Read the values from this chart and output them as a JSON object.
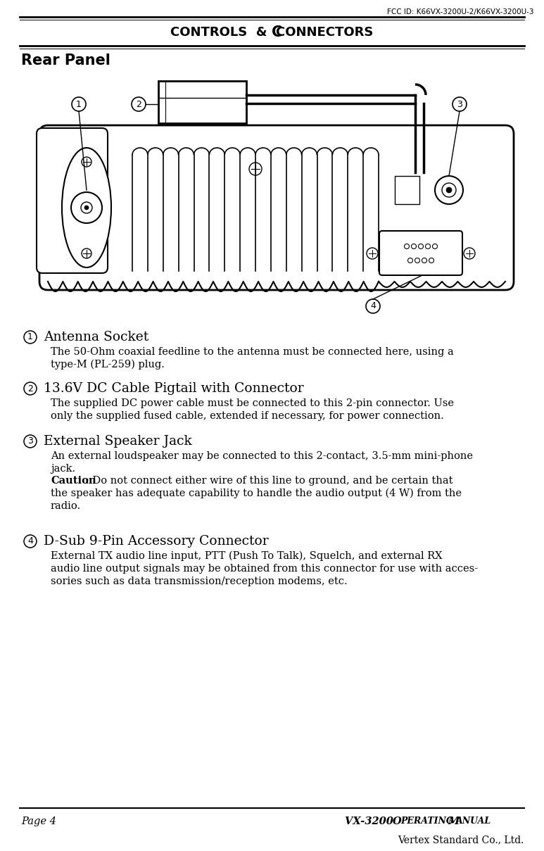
{
  "fcc_id": "FCC ID: K66VX-3200U-2/K66VX-3200U-3",
  "header_title_top": "CONTROLS",
  "header_title_amp": " & ",
  "header_title_bot": "CONNECTORS",
  "section_title": "Rear Panel",
  "footer_left": "Page 4",
  "footer_center": "VX-3200 O",
  "footer_center2": "PERATING",
  "footer_center3": " M",
  "footer_center4": "ANUAL",
  "footer_right": "Vertex Standard Co., Ltd.",
  "item1_title": "Antenna Socket",
  "item1_body1": "The 50-Ohm coaxial feedline to the antenna must be connected here, using a",
  "item1_body2": "type-M (PL-259) plug.",
  "item2_title": "13.6V DC Cable Pigtail with Connector",
  "item2_body1": "The supplied DC power cable must be connected to this 2-pin connector. Use",
  "item2_body2": "only the supplied fused cable, extended if necessary, for power connection.",
  "item3_title": "External Speaker Jack",
  "item3_body1": "An external loudspeaker may be connected to this 2-contact, 3.5-mm mini-phone",
  "item3_body2": "jack.",
  "item3_caution_bold": "Caution",
  "item3_caution_rest": ": Do not connect either wire of this line to ground, and be certain that",
  "item3_caution2": "the speaker has adequate capability to handle the audio output (4 W) from the",
  "item3_caution3": "radio.",
  "item4_title": "D-Sub 9-Pin Accessory Connector",
  "item4_body1": "External TX audio line input, PTT (Push To Talk), Squelch, and external RX",
  "item4_body2": "audio line output signals may be obtained from this connector for use with acces-",
  "item4_body3": "sories such as data transmission/reception modems, etc.",
  "bg_color": "#ffffff",
  "text_color": "#000000"
}
